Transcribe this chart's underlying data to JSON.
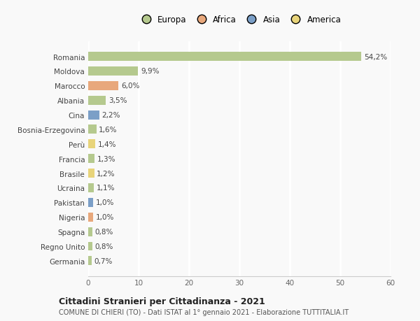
{
  "categories": [
    "Romania",
    "Moldova",
    "Marocco",
    "Albania",
    "Cina",
    "Bosnia-Erzegovina",
    "Perù",
    "Francia",
    "Brasile",
    "Ucraina",
    "Pakistan",
    "Nigeria",
    "Spagna",
    "Regno Unito",
    "Germania"
  ],
  "values": [
    54.2,
    9.9,
    6.0,
    3.5,
    2.2,
    1.6,
    1.4,
    1.3,
    1.2,
    1.1,
    1.0,
    1.0,
    0.8,
    0.8,
    0.7
  ],
  "labels": [
    "54,2%",
    "9,9%",
    "6,0%",
    "3,5%",
    "2,2%",
    "1,6%",
    "1,4%",
    "1,3%",
    "1,2%",
    "1,1%",
    "1,0%",
    "1,0%",
    "0,8%",
    "0,8%",
    "0,7%"
  ],
  "colors": [
    "#b5c98e",
    "#b5c98e",
    "#e8a87c",
    "#b5c98e",
    "#7b9fc7",
    "#b5c98e",
    "#e8d47a",
    "#b5c98e",
    "#e8d47a",
    "#b5c98e",
    "#7b9fc7",
    "#e8a87c",
    "#b5c98e",
    "#b5c98e",
    "#b5c98e"
  ],
  "legend": [
    {
      "label": "Europa",
      "color": "#b5c98e"
    },
    {
      "label": "Africa",
      "color": "#e8a87c"
    },
    {
      "label": "Asia",
      "color": "#7b9fc7"
    },
    {
      "label": "America",
      "color": "#e8d47a"
    }
  ],
  "xlim": [
    0,
    60
  ],
  "xticks": [
    0,
    10,
    20,
    30,
    40,
    50,
    60
  ],
  "title": "Cittadini Stranieri per Cittadinanza - 2021",
  "subtitle": "COMUNE DI CHIERI (TO) - Dati ISTAT al 1° gennaio 2021 - Elaborazione TUTTITALIA.IT",
  "background_color": "#f9f9f9",
  "grid_color": "#ffffff",
  "bar_height": 0.62
}
